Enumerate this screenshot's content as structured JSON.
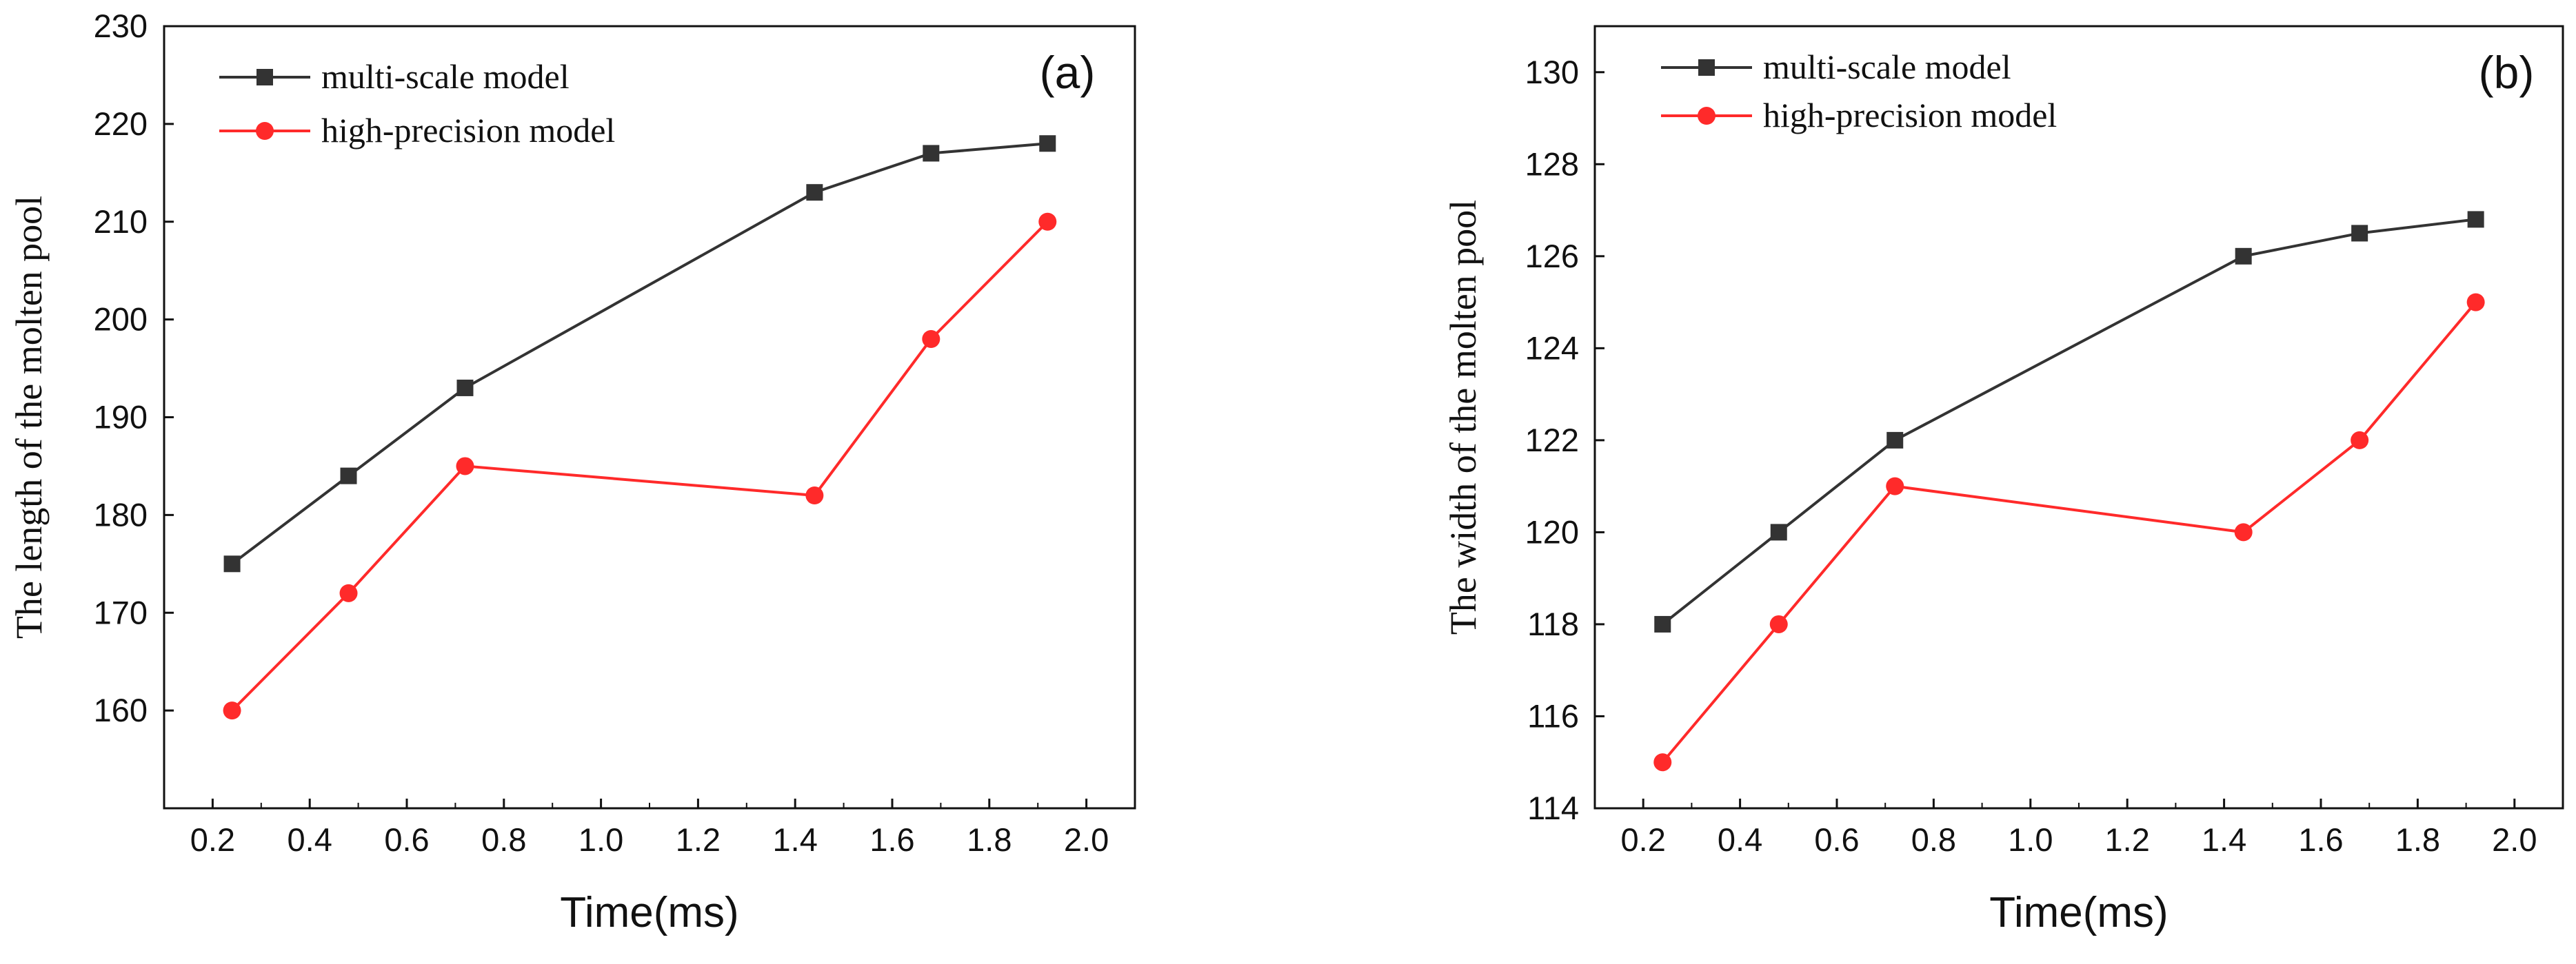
{
  "chart_data": [
    {
      "type": "line",
      "panel_label": "(a)",
      "xlabel": "Time(ms)",
      "ylabel": "The length of the molten pool",
      "xlim": [
        0.1,
        2.1
      ],
      "ylim": [
        150,
        230
      ],
      "xticks": [
        "0.2",
        "0.4",
        "0.6",
        "0.8",
        "1.0",
        "1.2",
        "1.4",
        "1.6",
        "1.8",
        "2.0"
      ],
      "yticks": [
        "160",
        "170",
        "180",
        "190",
        "200",
        "210",
        "220",
        "230"
      ],
      "legend_position": "top-left",
      "series": [
        {
          "name": "multi-scale model",
          "color": "#333333",
          "marker": "square",
          "x": [
            0.24,
            0.48,
            0.72,
            1.44,
            1.68,
            1.92
          ],
          "values": [
            175,
            184,
            193,
            213,
            217,
            218
          ]
        },
        {
          "name": "high-precision model",
          "color": "#ff2a2a",
          "marker": "circle",
          "x": [
            0.24,
            0.48,
            0.72,
            1.44,
            1.68,
            1.92
          ],
          "values": [
            160,
            172,
            185,
            182,
            198,
            210
          ]
        }
      ]
    },
    {
      "type": "line",
      "panel_label": "(b)",
      "xlabel": "Time(ms)",
      "ylabel": "The width of the molten pool",
      "xlim": [
        0.1,
        2.1
      ],
      "ylim": [
        114,
        131
      ],
      "xticks": [
        "0.2",
        "0.4",
        "0.6",
        "0.8",
        "1.0",
        "1.2",
        "1.4",
        "1.6",
        "1.8",
        "2.0"
      ],
      "yticks": [
        "114",
        "116",
        "118",
        "120",
        "122",
        "124",
        "126",
        "128",
        "130"
      ],
      "legend_position": "top-left",
      "series": [
        {
          "name": "multi-scale model",
          "color": "#333333",
          "marker": "square",
          "x": [
            0.24,
            0.48,
            0.72,
            1.44,
            1.68,
            1.92
          ],
          "values": [
            118,
            120,
            122,
            126,
            126.5,
            126.8
          ]
        },
        {
          "name": "high-precision model",
          "color": "#ff2a2a",
          "marker": "circle",
          "x": [
            0.24,
            0.48,
            0.72,
            1.44,
            1.68,
            1.92
          ],
          "values": [
            115,
            118,
            121,
            120,
            122,
            125
          ]
        }
      ]
    }
  ]
}
